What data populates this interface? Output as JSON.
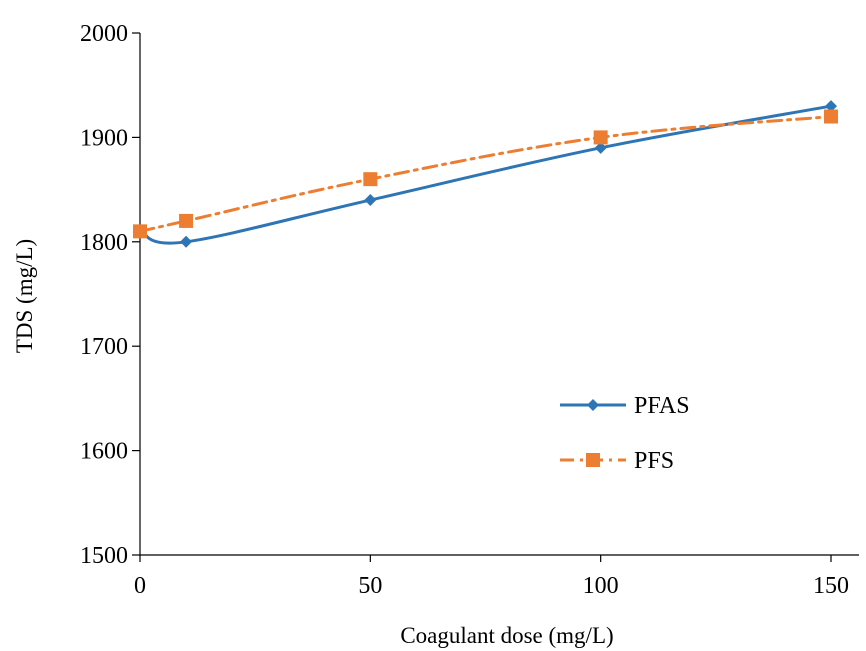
{
  "chart_data": {
    "type": "line",
    "title": "",
    "xlabel": "Coagulant dose (mg/L)",
    "ylabel": "TDS (mg/L)",
    "xlim": [
      0,
      150
    ],
    "ylim": [
      1500,
      2000
    ],
    "xticks": [
      0,
      50,
      100,
      150
    ],
    "yticks": [
      1500,
      1600,
      1700,
      1800,
      1900,
      2000
    ],
    "grid": false,
    "legend_position": "center-right",
    "series": [
      {
        "name": "PFAS",
        "x": [
          0,
          10,
          50,
          100,
          150
        ],
        "y": [
          1810,
          1800,
          1840,
          1890,
          1930
        ],
        "color": "#2E75B6",
        "marker": "diamond",
        "line_style": "solid",
        "smooth": true
      },
      {
        "name": "PFS",
        "x": [
          0,
          10,
          50,
          100,
          150
        ],
        "y": [
          1810,
          1820,
          1860,
          1900,
          1920
        ],
        "color": "#ED7D31",
        "marker": "square",
        "line_style": "dash-dot",
        "smooth": true
      }
    ]
  }
}
